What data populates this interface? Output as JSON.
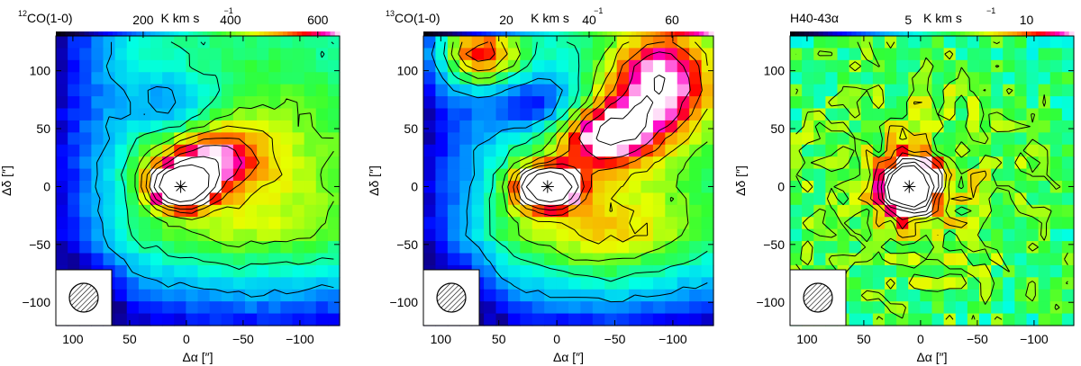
{
  "chart_data": [
    {
      "type": "heatmap",
      "title_sup": "12",
      "title": "CO(1-0)",
      "colorbar": {
        "label": "K km s",
        "exponent": "−1",
        "ticks": [
          200,
          400,
          600
        ],
        "range": [
          0,
          650
        ]
      },
      "xlabel": "Δα [″]",
      "ylabel": "Δδ [″]",
      "xlim": [
        115,
        -135
      ],
      "ylim": [
        -120,
        130
      ],
      "xticks": [
        100,
        50,
        0,
        -50,
        -100
      ],
      "yticks": [
        100,
        50,
        0,
        -50,
        -100
      ],
      "peak": [
        5,
        0
      ],
      "features": [
        {
          "kind": "peak",
          "x": 5,
          "y": 0,
          "amp": 1.0,
          "sx": 18,
          "sy": 12
        },
        {
          "kind": "ridge",
          "x": -20,
          "y": 25,
          "amp": 0.35,
          "sx": 30,
          "sy": 18
        },
        {
          "kind": "hole",
          "x": 15,
          "y": 70,
          "amp": -0.25,
          "sx": 30,
          "sy": 20
        },
        {
          "kind": "plateau",
          "x": -60,
          "y": 0,
          "amp": 0.25,
          "sx": 80,
          "sy": 80
        }
      ],
      "beam_legend": "hatched beam circle"
    },
    {
      "type": "heatmap",
      "title_sup": "13",
      "title": "CO(1-0)",
      "colorbar": {
        "label": "K km s",
        "exponent": "−1",
        "ticks": [
          20,
          40,
          60
        ],
        "range": [
          0,
          70
        ]
      },
      "xlabel": "Δα [″]",
      "ylabel": "Δδ [″]",
      "xlim": [
        115,
        -135
      ],
      "ylim": [
        -120,
        130
      ],
      "xticks": [
        100,
        50,
        0,
        -50,
        -100
      ],
      "yticks": [
        100,
        50,
        0,
        -50,
        -100
      ],
      "peak": [
        8,
        0
      ],
      "features": [
        {
          "kind": "peak",
          "x": 8,
          "y": 0,
          "amp": 1.0,
          "sx": 18,
          "sy": 12
        },
        {
          "kind": "ridge",
          "x": -40,
          "y": 45,
          "amp": 0.5,
          "sx": 30,
          "sy": 20
        },
        {
          "kind": "ridge",
          "x": -90,
          "y": 90,
          "amp": 0.6,
          "sx": 35,
          "sy": 35
        },
        {
          "kind": "ridge",
          "x": 70,
          "y": 115,
          "amp": 0.55,
          "sx": 25,
          "sy": 20
        },
        {
          "kind": "hole",
          "x": 20,
          "y": 70,
          "amp": -0.3,
          "sx": 30,
          "sy": 18
        },
        {
          "kind": "plateau",
          "x": -40,
          "y": -40,
          "amp": 0.3,
          "sx": 70,
          "sy": 50
        }
      ],
      "beam_legend": "hatched beam circle"
    },
    {
      "type": "heatmap",
      "title": "H40-43α",
      "colorbar": {
        "label": "K km s",
        "exponent": "−1",
        "ticks": [
          5,
          10
        ],
        "range": [
          0,
          12
        ]
      },
      "xlabel": "Δα [″]",
      "ylabel": "Δδ [″]",
      "xlim": [
        115,
        -135
      ],
      "ylim": [
        -120,
        130
      ],
      "xticks": [
        100,
        50,
        0,
        -50,
        -100
      ],
      "yticks": [
        100,
        50,
        0,
        -50,
        -100
      ],
      "peak": [
        10,
        0
      ],
      "features": [
        {
          "kind": "peak",
          "x": 10,
          "y": 0,
          "amp": 1.0,
          "sx": 17,
          "sy": 17
        },
        {
          "kind": "plateau",
          "x": 0,
          "y": 0,
          "amp": 0.2,
          "sx": 120,
          "sy": 120
        }
      ],
      "beam_legend": "hatched beam circle"
    }
  ]
}
